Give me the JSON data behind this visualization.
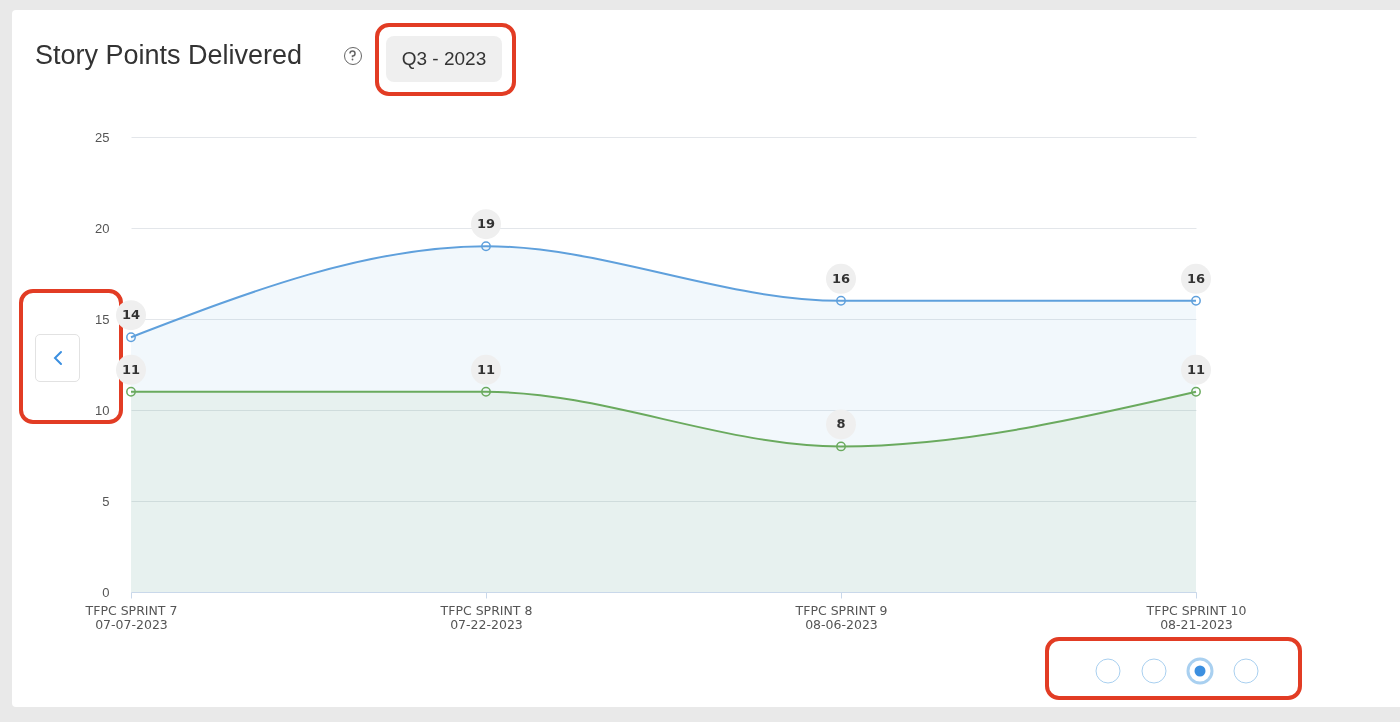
{
  "chart_data": {
    "type": "area",
    "title": "Story Points Delivered",
    "subtitle": "Q3 - 2023",
    "categories": [
      "TFPC SPRINT 7\n07-07-2023",
      "TFPC SPRINT 8\n07-22-2023",
      "TFPC SPRINT 9\n08-06-2023",
      "TFPC SPRINT 10\n08-21-2023"
    ],
    "series": [
      {
        "color": "#5fa0dc",
        "values": [
          14,
          19,
          16,
          16
        ]
      },
      {
        "color": "#6aaa5e",
        "values": [
          11,
          11,
          8,
          11
        ]
      }
    ],
    "ylim": [
      0,
      25
    ],
    "yticks": [
      0,
      5,
      10,
      15,
      20,
      25
    ],
    "grid": "y",
    "marker": "circle",
    "data_labels": true
  }
}
